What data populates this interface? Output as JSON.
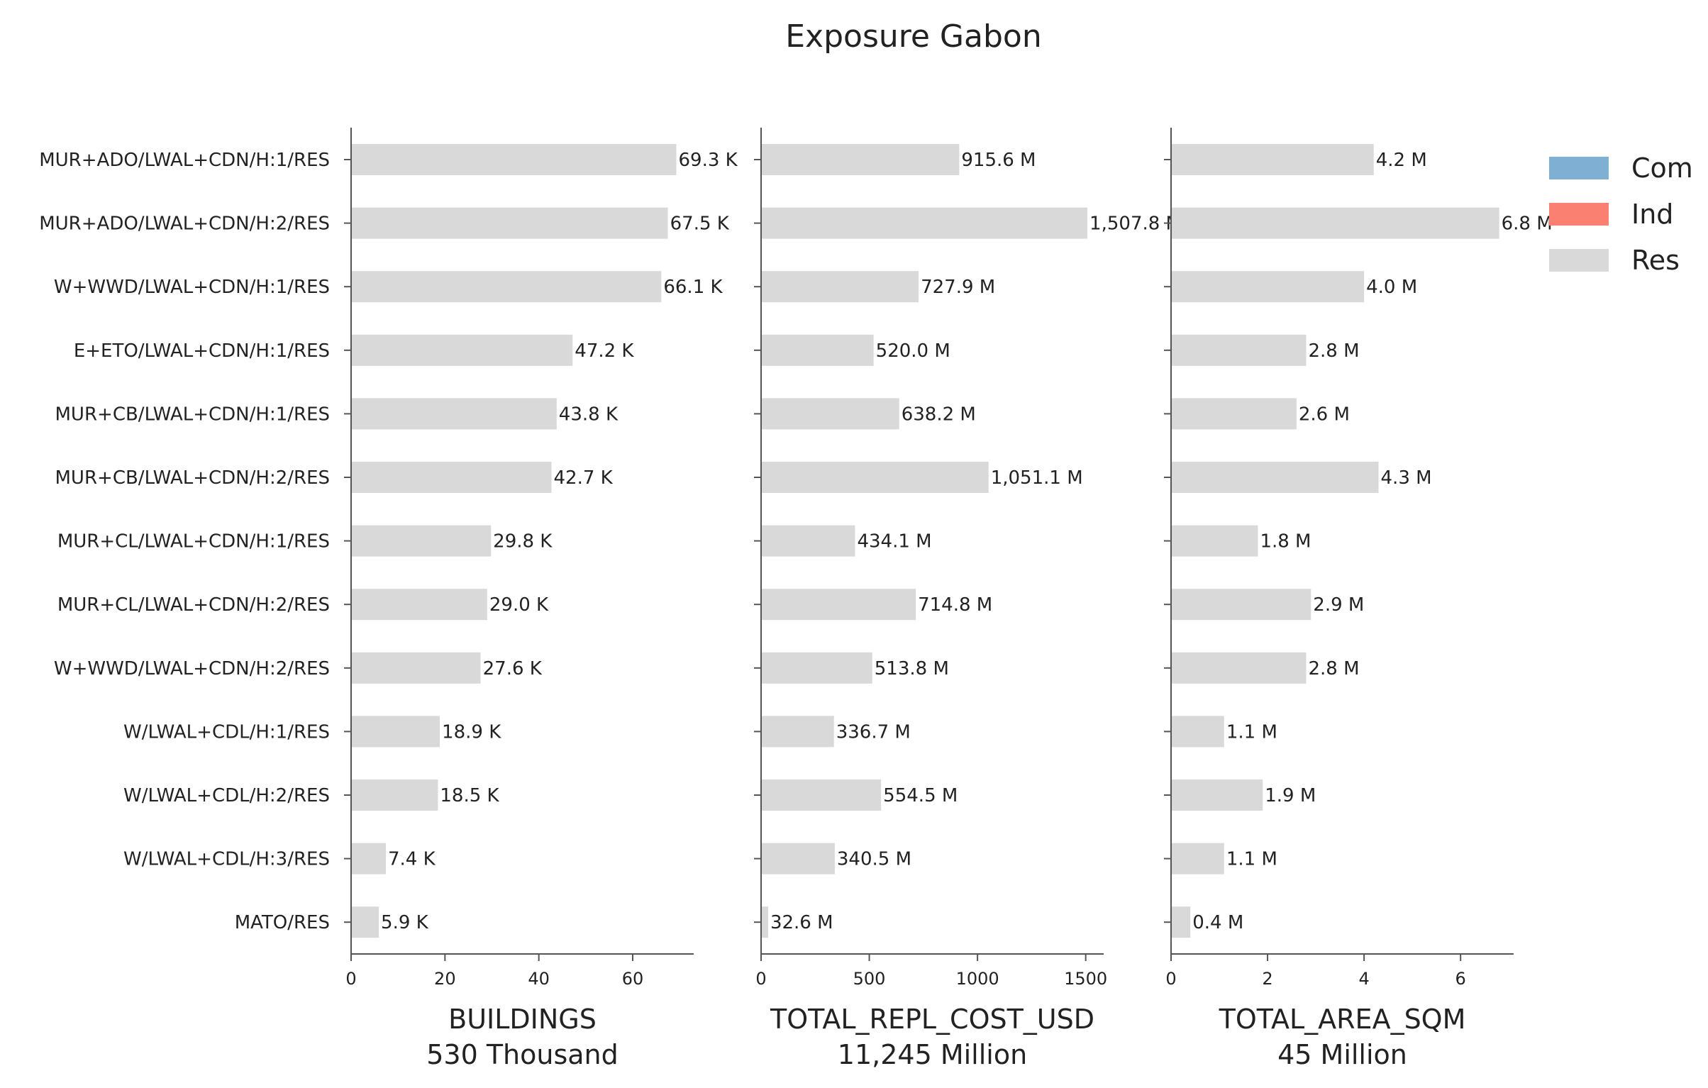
{
  "chart_data": {
    "type": "bar",
    "orientation": "horizontal",
    "title": "Exposure Gabon",
    "categories": [
      "MUR+ADO/LWAL+CDN/H:1/RES",
      "MUR+ADO/LWAL+CDN/H:2/RES",
      "W+WWD/LWAL+CDN/H:1/RES",
      "E+ETO/LWAL+CDN/H:1/RES",
      "MUR+CB/LWAL+CDN/H:1/RES",
      "MUR+CB/LWAL+CDN/H:2/RES",
      "MUR+CL/LWAL+CDN/H:1/RES",
      "MUR+CL/LWAL+CDN/H:2/RES",
      "W+WWD/LWAL+CDN/H:2/RES",
      "W/LWAL+CDL/H:1/RES",
      "W/LWAL+CDL/H:2/RES",
      "W/LWAL+CDL/H:3/RES",
      "MATO/RES"
    ],
    "legend": {
      "position": "top-right",
      "entries": [
        {
          "label": "Com",
          "color": "#7fb0d3"
        },
        {
          "label": "Ind",
          "color": "#fa8072"
        },
        {
          "label": "Res",
          "color": "#d9d9d9"
        }
      ]
    },
    "grid": false,
    "panels": [
      {
        "xlabel": "BUILDINGS",
        "subtitle": "530 Thousand",
        "xlim": [
          0,
          73
        ],
        "xticks": [
          0,
          20,
          40,
          60
        ],
        "xtick_labels": [
          "0",
          "20",
          "40",
          "60"
        ],
        "series": [
          {
            "name": "Res",
            "color": "#d9d9d9",
            "values": [
              69.3,
              67.5,
              66.1,
              47.2,
              43.8,
              42.7,
              29.8,
              29.0,
              27.6,
              18.9,
              18.5,
              7.4,
              5.9
            ],
            "labels": [
              "69.3 K",
              "67.5 K",
              "66.1 K",
              "47.2 K",
              "43.8 K",
              "42.7 K",
              "29.8 K",
              "29.0 K",
              "27.6 K",
              "18.9 K",
              "18.5 K",
              "7.4 K",
              "5.9 K"
            ]
          }
        ]
      },
      {
        "xlabel": "TOTAL_REPL_COST_USD",
        "subtitle": "11,245 Million",
        "xlim": [
          0,
          1583
        ],
        "xticks": [
          0,
          500,
          1000,
          1500
        ],
        "xtick_labels": [
          "0",
          "500",
          "1000",
          "1500"
        ],
        "series": [
          {
            "name": "Res",
            "color": "#d9d9d9",
            "values": [
              915.6,
              1507.8,
              727.9,
              520.0,
              638.2,
              1051.1,
              434.1,
              714.8,
              513.8,
              336.7,
              554.5,
              340.5,
              32.6
            ],
            "labels": [
              "915.6 M",
              "1,507.8 M",
              "727.9 M",
              "520.0 M",
              "638.2 M",
              "1,051.1 M",
              "434.1 M",
              "714.8 M",
              "513.8 M",
              "336.7 M",
              "554.5 M",
              "340.5 M",
              "32.6 M"
            ]
          }
        ]
      },
      {
        "xlabel": "TOTAL_AREA_SQM",
        "subtitle": "45 Million",
        "xlim": [
          0,
          7.1
        ],
        "xticks": [
          0,
          2,
          4,
          6
        ],
        "xtick_labels": [
          "0",
          "2",
          "4",
          "6"
        ],
        "series": [
          {
            "name": "Res",
            "color": "#d9d9d9",
            "values": [
              4.2,
              6.8,
              4.0,
              2.8,
              2.6,
              4.3,
              1.8,
              2.9,
              2.8,
              1.1,
              1.9,
              1.1,
              0.4
            ],
            "labels": [
              "4.2 M",
              "6.8 M",
              "4.0 M",
              "2.8 M",
              "2.6 M",
              "4.3 M",
              "1.8 M",
              "2.9 M",
              "2.8 M",
              "1.1 M",
              "1.9 M",
              "1.1 M",
              "0.4 M"
            ]
          }
        ]
      }
    ]
  }
}
